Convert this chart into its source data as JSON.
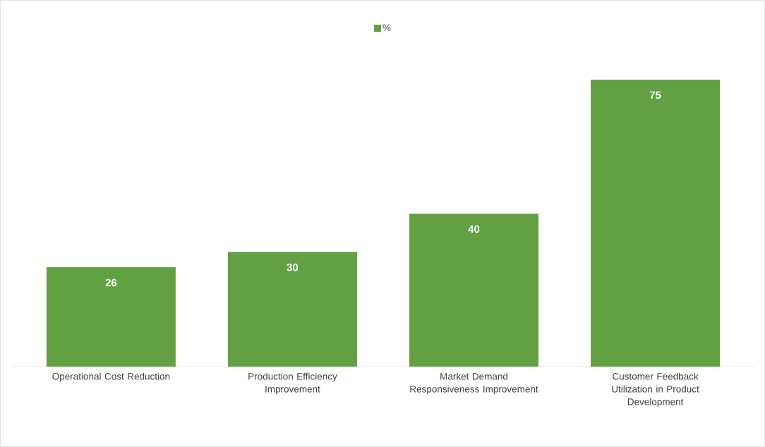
{
  "chart_data": {
    "type": "bar",
    "categories": [
      "Operational Cost Reduction",
      "Production Efficiency Improvement",
      "Market Demand Responsiveness Improvement",
      "Customer Feedback Utilization in Product Development"
    ],
    "series": [
      {
        "name": "%",
        "color": "#62a043",
        "values": [
          26,
          30,
          40,
          75
        ]
      }
    ],
    "data_labels": true,
    "legend": "top"
  }
}
